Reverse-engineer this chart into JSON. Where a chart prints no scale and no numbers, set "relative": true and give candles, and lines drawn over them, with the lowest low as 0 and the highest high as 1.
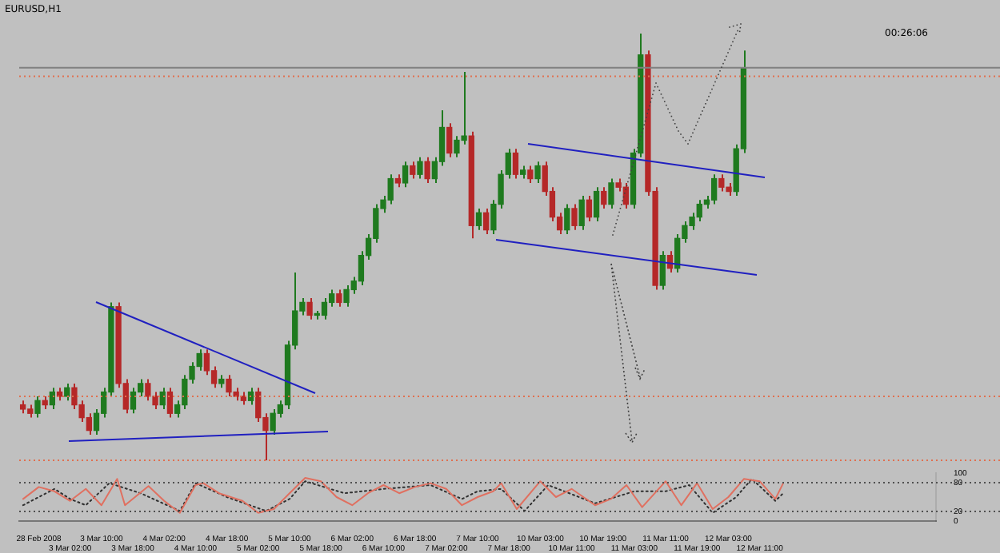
{
  "chart_data": [
    {
      "type": "candlestick",
      "title": "EURUSD,H1",
      "annotations": [
        "00:26:06"
      ],
      "relative": true,
      "tick_labels": false,
      "categories": [
        null,
        null,
        null,
        null,
        null,
        null,
        null,
        null,
        null,
        null,
        null,
        null,
        null,
        null,
        null,
        null,
        null,
        null,
        null,
        null,
        null,
        null,
        null,
        null,
        null,
        null,
        null,
        null,
        null,
        null,
        null,
        null,
        null,
        null,
        null,
        null,
        null,
        null,
        null,
        null,
        null,
        null,
        null,
        null,
        null,
        null,
        null,
        null,
        null,
        null,
        null,
        null,
        null,
        null,
        null,
        null,
        null,
        null,
        null,
        null,
        null,
        null,
        null,
        null,
        null,
        null,
        null,
        null,
        null,
        null,
        null,
        null,
        null,
        null,
        null,
        null,
        null,
        null,
        null,
        null,
        null,
        null,
        null,
        null,
        null,
        null,
        null,
        null,
        null,
        null,
        null,
        null,
        null,
        null,
        null,
        null,
        null,
        null,
        null
      ],
      "ohlc": [
        [
          0.13,
          0.14,
          0.11,
          0.12
        ],
        [
          0.12,
          0.13,
          0.1,
          0.11
        ],
        [
          0.11,
          0.15,
          0.1,
          0.14
        ],
        [
          0.14,
          0.15,
          0.12,
          0.13
        ],
        [
          0.13,
          0.17,
          0.12,
          0.16
        ],
        [
          0.16,
          0.17,
          0.14,
          0.15
        ],
        [
          0.15,
          0.18,
          0.14,
          0.17
        ],
        [
          0.17,
          0.18,
          0.12,
          0.13
        ],
        [
          0.13,
          0.14,
          0.09,
          0.1
        ],
        [
          0.1,
          0.11,
          0.06,
          0.07
        ],
        [
          0.07,
          0.12,
          0.06,
          0.11
        ],
        [
          0.11,
          0.17,
          0.1,
          0.16
        ],
        [
          0.16,
          0.37,
          0.15,
          0.36
        ],
        [
          0.36,
          0.37,
          0.17,
          0.18
        ],
        [
          0.18,
          0.19,
          0.11,
          0.12
        ],
        [
          0.12,
          0.17,
          0.11,
          0.16
        ],
        [
          0.16,
          0.19,
          0.15,
          0.18
        ],
        [
          0.18,
          0.19,
          0.14,
          0.15
        ],
        [
          0.15,
          0.16,
          0.12,
          0.13
        ],
        [
          0.13,
          0.17,
          0.12,
          0.16
        ],
        [
          0.16,
          0.17,
          0.1,
          0.11
        ],
        [
          0.11,
          0.14,
          0.1,
          0.13
        ],
        [
          0.13,
          0.2,
          0.12,
          0.19
        ],
        [
          0.19,
          0.23,
          0.18,
          0.22
        ],
        [
          0.22,
          0.26,
          0.21,
          0.25
        ],
        [
          0.25,
          0.26,
          0.2,
          0.21
        ],
        [
          0.21,
          0.22,
          0.17,
          0.18
        ],
        [
          0.18,
          0.2,
          0.17,
          0.19
        ],
        [
          0.19,
          0.2,
          0.15,
          0.16
        ],
        [
          0.16,
          0.17,
          0.14,
          0.15
        ],
        [
          0.15,
          0.16,
          0.13,
          0.14
        ],
        [
          0.14,
          0.17,
          0.13,
          0.16
        ],
        [
          0.16,
          0.17,
          0.09,
          0.1
        ],
        [
          0.1,
          0.11,
          0,
          0.07
        ],
        [
          0.07,
          0.12,
          0.06,
          0.11
        ],
        [
          0.11,
          0.14,
          0.1,
          0.13
        ],
        [
          0.13,
          0.28,
          0.12,
          0.27
        ],
        [
          0.27,
          0.44,
          0.26,
          0.35
        ],
        [
          0.35,
          0.38,
          0.34,
          0.37
        ],
        [
          0.37,
          0.38,
          0.33,
          0.34
        ],
        [
          0.34,
          0.35,
          0.33,
          0.34
        ],
        [
          0.34,
          0.38,
          0.33,
          0.37
        ],
        [
          0.37,
          0.4,
          0.36,
          0.39
        ],
        [
          0.39,
          0.4,
          0.36,
          0.37
        ],
        [
          0.37,
          0.41,
          0.36,
          0.4
        ],
        [
          0.4,
          0.43,
          0.39,
          0.42
        ],
        [
          0.42,
          0.49,
          0.41,
          0.48
        ],
        [
          0.48,
          0.53,
          0.47,
          0.52
        ],
        [
          0.52,
          0.6,
          0.51,
          0.59
        ],
        [
          0.59,
          0.62,
          0.58,
          0.61
        ],
        [
          0.61,
          0.67,
          0.6,
          0.66
        ],
        [
          0.66,
          0.67,
          0.64,
          0.65
        ],
        [
          0.65,
          0.7,
          0.64,
          0.69
        ],
        [
          0.69,
          0.7,
          0.66,
          0.67
        ],
        [
          0.67,
          0.71,
          0.66,
          0.7
        ],
        [
          0.7,
          0.71,
          0.65,
          0.66
        ],
        [
          0.66,
          0.71,
          0.65,
          0.7
        ],
        [
          0.7,
          0.82,
          0.69,
          0.78
        ],
        [
          0.78,
          0.79,
          0.71,
          0.72
        ],
        [
          0.72,
          0.76,
          0.71,
          0.75
        ],
        [
          0.75,
          0.91,
          0.74,
          0.76
        ],
        [
          0.76,
          0.77,
          0.52,
          0.55
        ],
        [
          0.55,
          0.59,
          0.54,
          0.58
        ],
        [
          0.58,
          0.59,
          0.53,
          0.54
        ],
        [
          0.54,
          0.61,
          0.53,
          0.6
        ],
        [
          0.6,
          0.68,
          0.59,
          0.67
        ],
        [
          0.67,
          0.73,
          0.66,
          0.72
        ],
        [
          0.72,
          0.73,
          0.66,
          0.67
        ],
        [
          0.67,
          0.69,
          0.66,
          0.68
        ],
        [
          0.68,
          0.69,
          0.65,
          0.66
        ],
        [
          0.66,
          0.7,
          0.65,
          0.69
        ],
        [
          0.69,
          0.7,
          0.62,
          0.63
        ],
        [
          0.63,
          0.64,
          0.56,
          0.57
        ],
        [
          0.57,
          0.58,
          0.53,
          0.54
        ],
        [
          0.54,
          0.6,
          0.53,
          0.59
        ],
        [
          0.59,
          0.6,
          0.54,
          0.55
        ],
        [
          0.55,
          0.62,
          0.54,
          0.61
        ],
        [
          0.61,
          0.62,
          0.56,
          0.57
        ],
        [
          0.57,
          0.64,
          0.56,
          0.63
        ],
        [
          0.63,
          0.64,
          0.59,
          0.6
        ],
        [
          0.6,
          0.66,
          0.59,
          0.65
        ],
        [
          0.65,
          0.66,
          0.63,
          0.64
        ],
        [
          0.64,
          0.65,
          0.59,
          0.6
        ],
        [
          0.6,
          0.73,
          0.59,
          0.72
        ],
        [
          0.72,
          1,
          0.71,
          0.95
        ],
        [
          0.95,
          0.96,
          0.62,
          0.63
        ],
        [
          0.63,
          0.64,
          0.4,
          0.41
        ],
        [
          0.41,
          0.49,
          0.4,
          0.48
        ],
        [
          0.48,
          0.49,
          0.44,
          0.45
        ],
        [
          0.45,
          0.53,
          0.44,
          0.52
        ],
        [
          0.52,
          0.56,
          0.51,
          0.55
        ],
        [
          0.55,
          0.58,
          0.54,
          0.57
        ],
        [
          0.57,
          0.61,
          0.56,
          0.6
        ],
        [
          0.6,
          0.62,
          0.59,
          0.61
        ],
        [
          0.61,
          0.67,
          0.6,
          0.66
        ],
        [
          0.66,
          0.67,
          0.63,
          0.64
        ],
        [
          0.64,
          0.65,
          0.62,
          0.63
        ],
        [
          0.63,
          0.74,
          0.62,
          0.73
        ],
        [
          0.73,
          0.96,
          0.72,
          0.92
        ]
      ],
      "ref_lines": [
        {
          "axis": "y",
          "value": 0.92,
          "color": "#808080",
          "line_style": "solid"
        },
        {
          "axis": "y",
          "value": 0.9,
          "color": "#e07050",
          "line_style": "dotted"
        },
        {
          "axis": "y",
          "value": 0.15,
          "color": "#e07050",
          "line_style": "dotted"
        },
        {
          "axis": "y",
          "value": 0,
          "color": "#e07050",
          "line_style": "dotted"
        }
      ]
    },
    {
      "type": "line",
      "ylim": [
        0,
        100
      ],
      "yticks": [
        0,
        20,
        80,
        100
      ],
      "categories": [
        null,
        null,
        "28 Feb 2008",
        null,
        null,
        null,
        "3 Mar 02:00",
        null,
        null,
        null,
        "3 Mar 10:00",
        null,
        null,
        null,
        "3 Mar 18:00",
        null,
        null,
        null,
        "4 Mar 02:00",
        null,
        null,
        null,
        "4 Mar 10:00",
        null,
        null,
        null,
        "4 Mar 18:00",
        null,
        null,
        null,
        "5 Mar 02:00",
        null,
        null,
        null,
        "5 Mar 10:00",
        null,
        null,
        null,
        "5 Mar 18:00",
        null,
        null,
        null,
        "6 Mar 02:00",
        null,
        null,
        null,
        "6 Mar 10:00",
        null,
        null,
        null,
        "6 Mar 18:00",
        null,
        null,
        null,
        "7 Mar 02:00",
        null,
        null,
        null,
        "7 Mar 10:00",
        null,
        null,
        null,
        "7 Mar 18:00",
        null,
        null,
        null,
        "10 Mar 03:00",
        null,
        null,
        null,
        "10 Mar 11:00",
        null,
        null,
        null,
        "10 Mar 19:00",
        null,
        null,
        null,
        "11 Mar 03:00",
        null,
        null,
        null,
        "11 Mar 11:00",
        null,
        null,
        null,
        "11 Mar 19:00",
        null,
        null,
        null,
        "12 Mar 03:00",
        null,
        null,
        null,
        "12 Mar 11:00",
        null,
        null,
        null,
        null,
        null,
        null,
        null,
        null,
        null,
        null,
        null,
        null,
        null,
        null,
        null,
        null,
        null,
        null,
        null,
        null,
        null,
        null
      ],
      "series": [
        {
          "color": "#e07060",
          "values": [
            46,
            null,
            71,
            null,
            62,
            null,
            42,
            null,
            67,
            null,
            33,
            null,
            88,
            33,
            null,
            null,
            73,
            null,
            42,
            null,
            17,
            null,
            75,
            79,
            null,
            58,
            null,
            null,
            42,
            null,
            17,
            null,
            25,
            null,
            58,
            null,
            90,
            null,
            83,
            null,
            50,
            null,
            33,
            null,
            58,
            null,
            75,
            null,
            58,
            null,
            71,
            null,
            79,
            null,
            67,
            null,
            33,
            null,
            50,
            null,
            62,
            79,
            null,
            25,
            null,
            null,
            83,
            null,
            50,
            null,
            67,
            null,
            null,
            33,
            null,
            46,
            null,
            75,
            null,
            29,
            null,
            null,
            83,
            null,
            33,
            null,
            79,
            null,
            25,
            null,
            50,
            null,
            88,
            null,
            83,
            null,
            46,
            79,
            null,
            null,
            null,
            null,
            null,
            null,
            null,
            null,
            null,
            null,
            null,
            null,
            null,
            null,
            null,
            null,
            null,
            null,
            null
          ]
        },
        {
          "color": "#303030",
          "line_style": "dotted",
          "values": [
            33,
            null,
            null,
            null,
            67,
            null,
            46,
            null,
            33,
            null,
            null,
            79,
            null,
            null,
            null,
            58,
            null,
            null,
            null,
            null,
            21,
            null,
            79,
            null,
            null,
            null,
            50,
            null,
            null,
            null,
            null,
            21,
            null,
            null,
            46,
            null,
            83,
            null,
            null,
            null,
            null,
            58,
            null,
            null,
            null,
            null,
            67,
            null,
            null,
            null,
            null,
            null,
            75,
            null,
            null,
            null,
            46,
            null,
            62,
            null,
            null,
            67,
            null,
            null,
            21,
            null,
            null,
            75,
            null,
            null,
            null,
            null,
            null,
            37,
            null,
            null,
            null,
            null,
            62,
            null,
            null,
            null,
            62,
            null,
            null,
            75,
            null,
            null,
            17,
            null,
            null,
            50,
            null,
            88,
            null,
            null,
            42,
            58,
            null,
            null,
            null,
            null,
            null,
            null,
            null,
            null,
            null,
            null,
            null,
            null,
            null,
            null,
            null,
            null,
            null,
            null,
            null
          ]
        }
      ],
      "ref_lines": [
        {
          "axis": "y",
          "value": 80,
          "color": "#505050",
          "line_style": "dotted"
        },
        {
          "axis": "y",
          "value": 20,
          "color": "#505050",
          "line_style": "dotted"
        }
      ]
    }
  ]
}
